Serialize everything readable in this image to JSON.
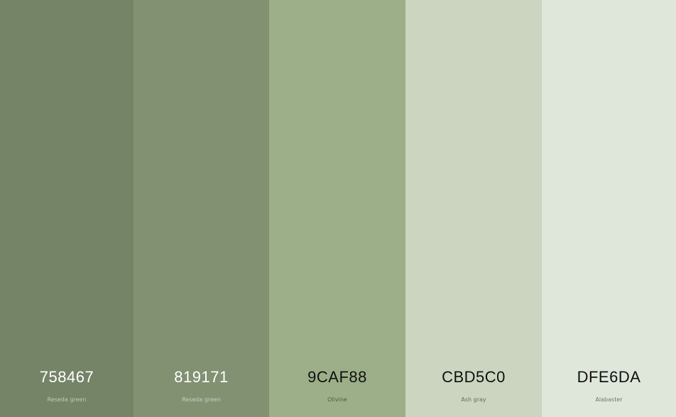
{
  "swatches": [
    {
      "hex": "758467",
      "name": "Reseda green",
      "color": "#758467"
    },
    {
      "hex": "819171",
      "name": "Reseda green",
      "color": "#819171"
    },
    {
      "hex": "9CAF88",
      "name": "Olivine",
      "color": "#9CAF88"
    },
    {
      "hex": "CBD5C0",
      "name": "Ash gray",
      "color": "#CBD5C0"
    },
    {
      "hex": "DFE6DA",
      "name": "Alabaster",
      "color": "#DFE6DA"
    }
  ]
}
